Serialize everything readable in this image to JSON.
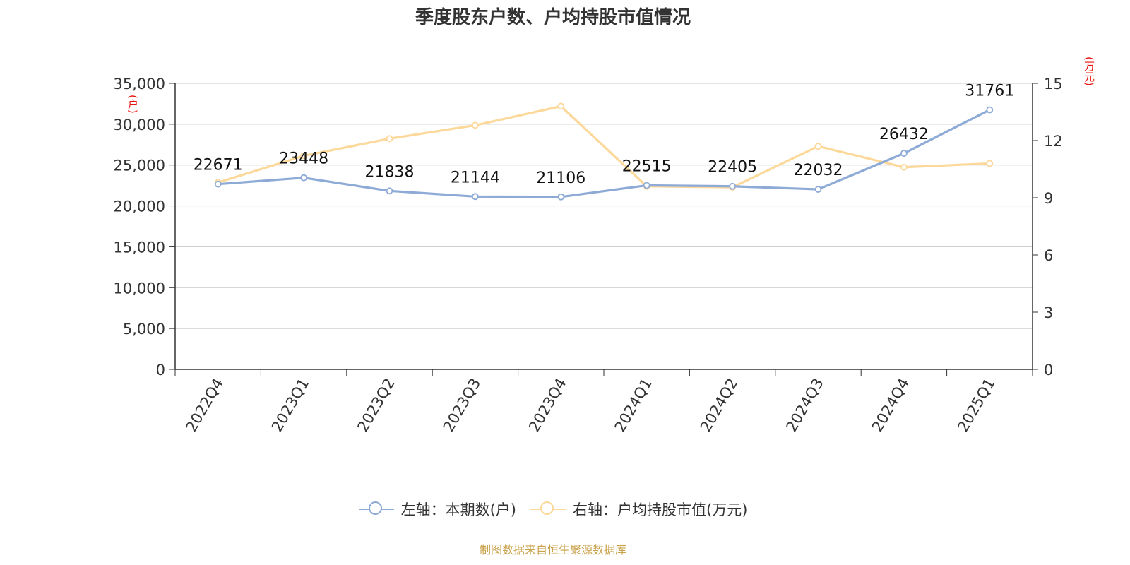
{
  "title": "季度股东户数、户均持股市值情况",
  "units": {
    "left": "(户)",
    "right": "(万元)"
  },
  "colors": {
    "series_left": "#8eaad6",
    "series_right": "#fcd89a",
    "axis": "#333333",
    "grid": "#c8c8c8",
    "unit_text": "#e8140f",
    "source_text": "#c9a24a"
  },
  "chart_data": {
    "type": "line",
    "title": "季度股东户数、户均持股市值情况",
    "categories": [
      "2022Q4",
      "2023Q1",
      "2023Q2",
      "2023Q3",
      "2023Q4",
      "2024Q1",
      "2024Q2",
      "2024Q3",
      "2024Q4",
      "2025Q1"
    ],
    "series": [
      {
        "name": "左轴：本期数(户)",
        "axis": "left",
        "values": [
          22671,
          23448,
          21838,
          21144,
          21106,
          22515,
          22405,
          22032,
          26432,
          31761
        ],
        "data_labels": true
      },
      {
        "name": "右轴：户均持股市值(万元)",
        "axis": "right",
        "values": [
          9.8,
          11.2,
          12.1,
          12.8,
          13.8,
          9.6,
          9.55,
          11.7,
          10.6,
          10.8
        ],
        "data_labels": false
      }
    ],
    "y_left": {
      "min": 0,
      "max": 35000,
      "ticks": [
        "0",
        "5,000",
        "10,000",
        "15,000",
        "20,000",
        "25,000",
        "30,000",
        "35,000"
      ],
      "unit": "(户)"
    },
    "y_right": {
      "min": 0,
      "max": 15,
      "ticks": [
        "0",
        "3",
        "6",
        "9",
        "12",
        "15"
      ],
      "unit": "(万元)"
    },
    "grid": true,
    "legend": "bottom-center"
  },
  "legend": {
    "items": [
      {
        "label": "左轴：本期数(户)"
      },
      {
        "label": "右轴：户均持股市值(万元)"
      }
    ]
  },
  "source": "制图数据来自恒生聚源数据库"
}
